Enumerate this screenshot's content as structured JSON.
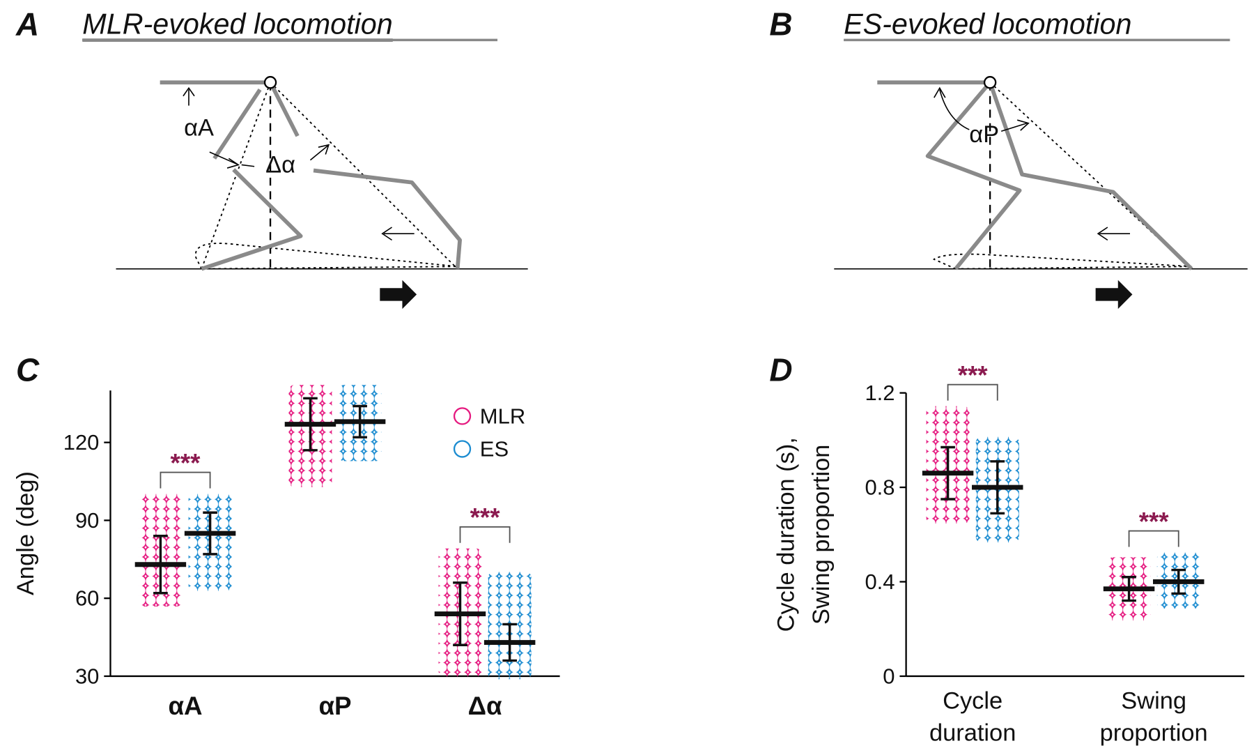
{
  "panels": [
    {
      "label": "A",
      "title": "MLR-evoked locomotion",
      "annotations": [
        "αA",
        "Δα"
      ]
    },
    {
      "label": "B",
      "title": "ES-evoked locomotion",
      "annotations": [
        "αP"
      ]
    }
  ],
  "chart_data": [
    {
      "type": "strip",
      "label": "C",
      "ylabel": [
        "Angle (deg)"
      ],
      "categories": [
        "αA",
        "αP",
        "Δα"
      ],
      "ylim": [
        30,
        140
      ],
      "yticks": [
        30,
        60,
        90,
        120
      ],
      "series": [
        {
          "name": "MLR",
          "color": "#e5197f",
          "mean": [
            73,
            127,
            54
          ],
          "sd": [
            11,
            10,
            12
          ],
          "min": [
            59,
            105,
            32
          ],
          "max": [
            98,
            140,
            77
          ]
        },
        {
          "name": "ES",
          "color": "#1a8bd0",
          "mean": [
            85,
            128,
            43
          ],
          "sd": [
            8,
            6,
            7
          ],
          "min": [
            65,
            115,
            31
          ],
          "max": [
            98,
            140,
            68
          ]
        }
      ],
      "significance": [
        "***",
        null,
        "***"
      ],
      "significance_color": "#8b1a4f",
      "legend": "upper right"
    },
    {
      "type": "strip",
      "label": "D",
      "ylabel": [
        "Cycle duration (s),",
        "Swing proportion"
      ],
      "categories": [
        [
          "Cycle",
          "duration"
        ],
        [
          "Swing",
          "proportion"
        ]
      ],
      "ylim": [
        0,
        1.2
      ],
      "yticks": [
        0,
        0.4,
        0.8,
        1.2
      ],
      "series": [
        {
          "name": "MLR",
          "color": "#e5197f",
          "mean": [
            0.86,
            0.37
          ],
          "sd": [
            0.11,
            0.05
          ],
          "min": [
            0.67,
            0.26
          ],
          "max": [
            1.12,
            0.48
          ]
        },
        {
          "name": "ES",
          "color": "#1a8bd0",
          "mean": [
            0.8,
            0.4
          ],
          "sd": [
            0.11,
            0.05
          ],
          "min": [
            0.59,
            0.31
          ],
          "max": [
            0.99,
            0.5
          ]
        }
      ],
      "significance": [
        "***",
        "***"
      ],
      "significance_color": "#8b1a4f"
    }
  ]
}
